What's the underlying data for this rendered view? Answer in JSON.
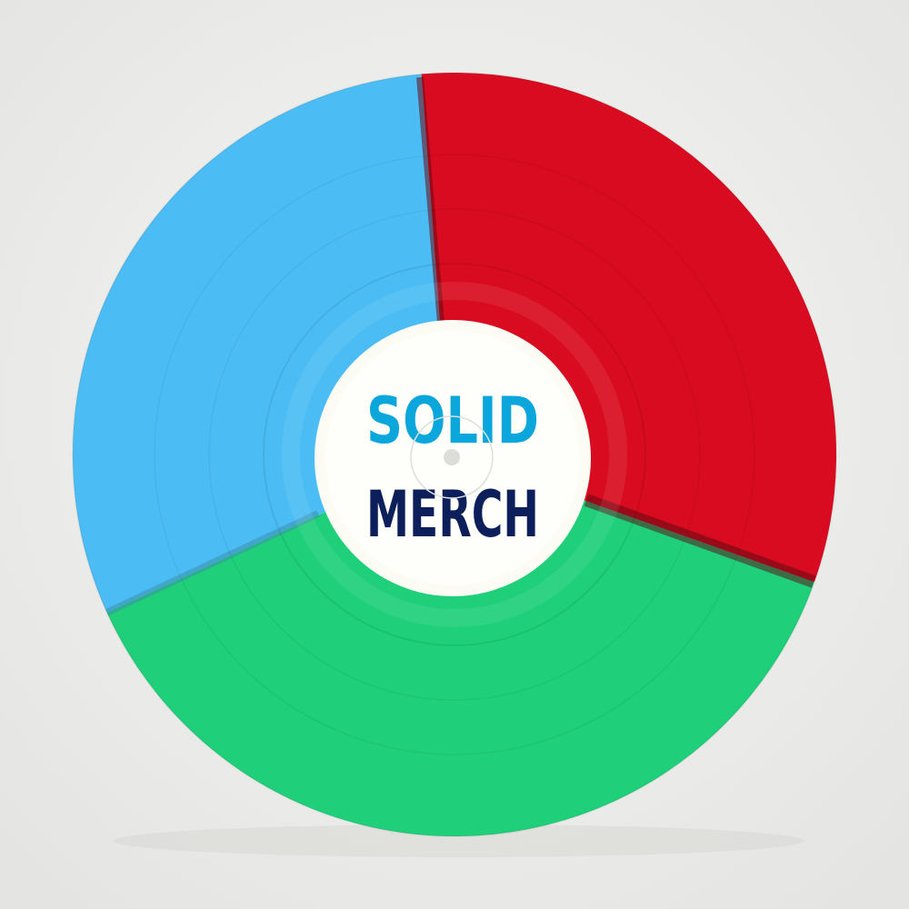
{
  "record": {
    "label_line1": "SOLID",
    "label_line2": "MERCH",
    "colors": {
      "background": "#eeeeec",
      "blue": "#4bbdf4",
      "red": "#d90b20",
      "green": "#1fcf7a",
      "label": "#fcfcf5",
      "text_line1": "#0aa6dc",
      "text_line2": "#0c1f5a"
    }
  }
}
